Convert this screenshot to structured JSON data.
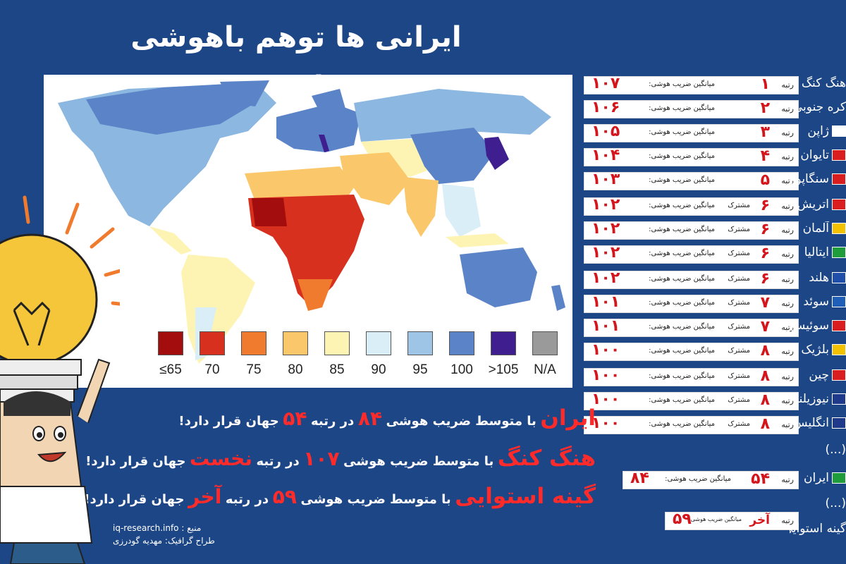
{
  "title": "ایرانی ها توهم باهوشی دارند؟",
  "legend": [
    {
      "label": "≤65",
      "color": "#a30d0d"
    },
    {
      "label": "70",
      "color": "#d7301f"
    },
    {
      "label": "75",
      "color": "#f07b2e"
    },
    {
      "label": "80",
      "color": "#fac86a"
    },
    {
      "label": "85",
      "color": "#fdf4b4"
    },
    {
      "label": "90",
      "color": "#d9eef7"
    },
    {
      "label": "95",
      "color": "#9ec5e6"
    },
    {
      "label": "100",
      "color": "#5b84c8"
    },
    {
      "label": ">105",
      "color": "#3f1f8f"
    },
    {
      "label": "N/A",
      "color": "#9a9a9a"
    }
  ],
  "ranking": {
    "rank_word": "رتبه",
    "avg_label": "میانگین ضریب هوشی:",
    "shared_label": "مشترک",
    "rows": [
      {
        "rank": "۱",
        "shared": "",
        "score": "۱۰۷"
      },
      {
        "rank": "۲",
        "shared": "",
        "score": "۱۰۶"
      },
      {
        "rank": "۳",
        "shared": "",
        "score": "۱۰۵"
      },
      {
        "rank": "۴",
        "shared": "",
        "score": "۱۰۴"
      },
      {
        "rank": "۵",
        "shared": "",
        "score": "۱۰۳"
      },
      {
        "rank": "۶",
        "shared": "مشترک",
        "score": "۱۰۲"
      },
      {
        "rank": "۶",
        "shared": "مشترک",
        "score": "۱۰۲"
      },
      {
        "rank": "۶",
        "shared": "مشترک",
        "score": "۱۰۲"
      },
      {
        "rank": "۶",
        "shared": "مشترک",
        "score": "۱۰۲"
      },
      {
        "rank": "۷",
        "shared": "مشترک",
        "score": "۱۰۱"
      },
      {
        "rank": "۷",
        "shared": "مشترک",
        "score": "۱۰۱"
      },
      {
        "rank": "۸",
        "shared": "مشترک",
        "score": "۱۰۰"
      },
      {
        "rank": "۸",
        "shared": "مشترک",
        "score": "۱۰۰"
      },
      {
        "rank": "۸",
        "shared": "مشترک",
        "score": "۱۰۰"
      },
      {
        "rank": "۸",
        "shared": "مشترک",
        "score": "۱۰۰"
      }
    ],
    "iran_rank": "۵۴",
    "iran_score": "۸۴",
    "last_rank": "آخر",
    "last_score": "۵۹"
  },
  "countries": [
    {
      "name": "هنگ کنگ",
      "flag": ""
    },
    {
      "name": "کره جنوبی",
      "flag": ""
    },
    {
      "name": "ژاپن",
      "flag": "#ffffff"
    },
    {
      "name": "تایوان",
      "flag": "#d81e1e"
    },
    {
      "name": "سنگاپور",
      "flag": "#d81e1e"
    },
    {
      "name": "اتریش",
      "flag": "#d81e1e"
    },
    {
      "name": "آلمان",
      "flag": "#f2c100"
    },
    {
      "name": "ایتالیا",
      "flag": "#1f9d3a"
    },
    {
      "name": "هلند",
      "flag": "#1f4fa8"
    },
    {
      "name": "سوئد",
      "flag": "#1f5fb8"
    },
    {
      "name": "سوئیس",
      "flag": "#d81e1e"
    },
    {
      "name": "بلژیک",
      "flag": "#f2c100"
    },
    {
      "name": "چین",
      "flag": "#d81e1e"
    },
    {
      "name": "نیوزیلند",
      "flag": "#1f3a8a"
    },
    {
      "name": "انگلیس",
      "flag": "#1f3a8a"
    },
    {
      "name": "(...)",
      "flag": ""
    },
    {
      "name": "ایران",
      "flag": "#1f9d3a"
    },
    {
      "name": "(...)",
      "flag": ""
    },
    {
      "name": "گینه استوایی",
      "flag": ""
    }
  ],
  "statements": {
    "line1": {
      "name": "ایران",
      "a": "با متوسط ضریب هوشی",
      "num": "۸۴",
      "b": "در رتبه",
      "rank": "۵۴",
      "c": "جهان قرار دارد!"
    },
    "line2": {
      "name": "هنگ کنگ",
      "a": "با متوسط ضریب هوشی",
      "num": "۱۰۷",
      "b": "در رتبه",
      "rank": "نخست",
      "c": "جهان قرار دارد!"
    },
    "line3": {
      "name": "گینه استوایی",
      "a": "با متوسط ضریب هوشی",
      "num": "۵۹",
      "b": "در رتبه",
      "rank": "آخر",
      "c": "جهان قرار دارد!"
    }
  },
  "source": {
    "label": "منبع :",
    "site": "iq-research.info",
    "designer": "طراح گرافیک: مهدیه گودرزی"
  }
}
